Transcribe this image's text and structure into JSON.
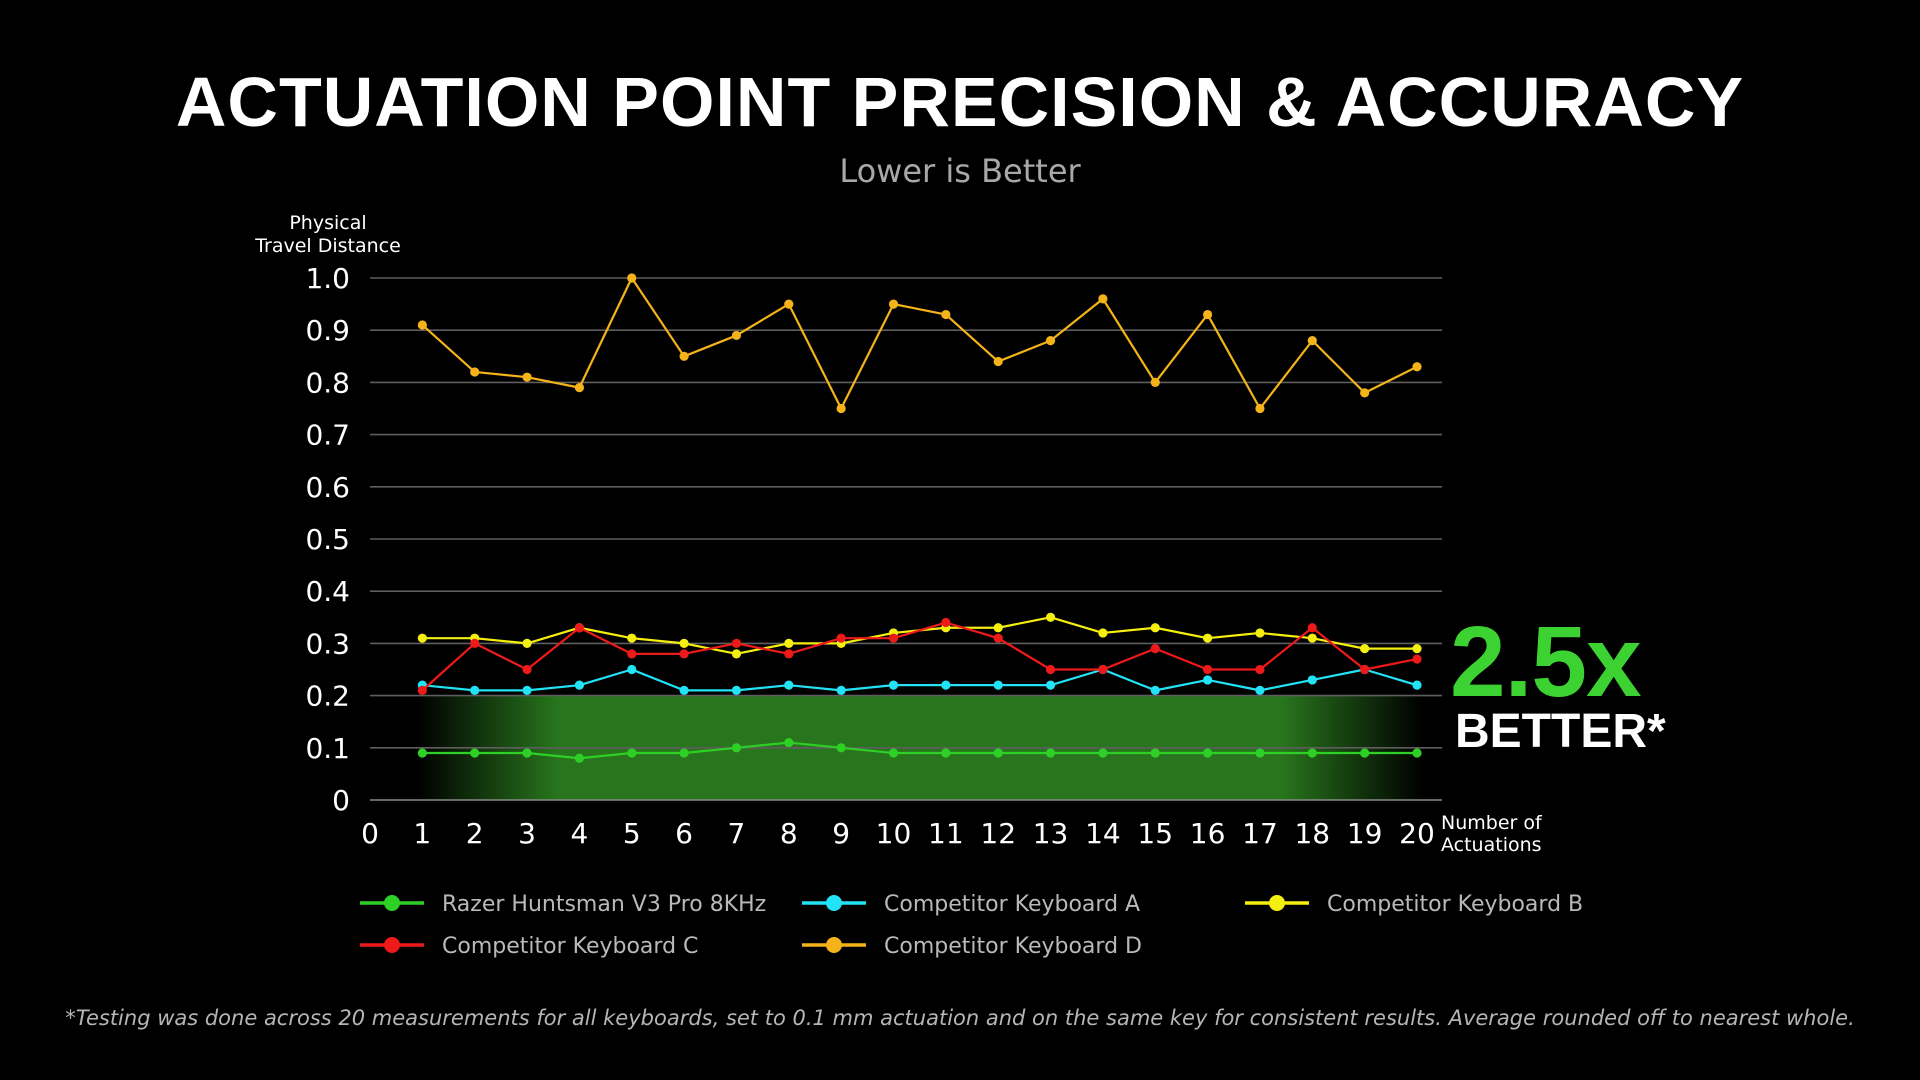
{
  "title": "ACTUATION POINT PRECISION & ACCURACY",
  "subtitle": "Lower is Better",
  "callout": {
    "multiplier": "2.5x",
    "label": "BETTER*",
    "color": "#3cd332"
  },
  "footnote": "*Testing was done across 20 measurements for all keyboards, set to 0.1 mm actuation and on the same key for consistent results. Average rounded off to nearest whole.",
  "chart_data": {
    "type": "line",
    "ylabel_lines": [
      "Physical",
      "Travel Distance"
    ],
    "xlabel_lines": [
      "Number of",
      "Actuations"
    ],
    "xlim": [
      0,
      20
    ],
    "ylim": [
      0,
      1.0
    ],
    "x_ticks": [
      "0",
      "1",
      "2",
      "3",
      "4",
      "5",
      "6",
      "7",
      "8",
      "9",
      "10",
      "11",
      "12",
      "13",
      "14",
      "15",
      "16",
      "17",
      "18",
      "19",
      "20"
    ],
    "y_ticks": [
      "0",
      "0.1",
      "0.2",
      "0.3",
      "0.4",
      "0.5",
      "0.6",
      "0.7",
      "0.8",
      "0.9",
      "1.0"
    ],
    "grid": true,
    "highlight_band": {
      "from": 0,
      "to": 0.2,
      "color": "#2f8a22"
    },
    "x": [
      1,
      2,
      3,
      4,
      5,
      6,
      7,
      8,
      9,
      10,
      11,
      12,
      13,
      14,
      15,
      16,
      17,
      18,
      19,
      20
    ],
    "series": [
      {
        "name": "Razer Huntsman V3 Pro 8KHz",
        "color": "#2fd026",
        "values": [
          0.09,
          0.09,
          0.09,
          0.08,
          0.09,
          0.09,
          0.1,
          0.11,
          0.1,
          0.09,
          0.09,
          0.09,
          0.09,
          0.09,
          0.09,
          0.09,
          0.09,
          0.09,
          0.09,
          0.09
        ]
      },
      {
        "name": "Competitor Keyboard A",
        "color": "#22e3f5",
        "values": [
          0.22,
          0.21,
          0.21,
          0.22,
          0.25,
          0.21,
          0.21,
          0.22,
          0.21,
          0.22,
          0.22,
          0.22,
          0.22,
          0.25,
          0.21,
          0.23,
          0.21,
          0.23,
          0.25,
          0.22
        ]
      },
      {
        "name": "Competitor Keyboard B",
        "color": "#f5ef10",
        "values": [
          0.31,
          0.31,
          0.3,
          0.33,
          0.31,
          0.3,
          0.28,
          0.3,
          0.3,
          0.32,
          0.33,
          0.33,
          0.35,
          0.32,
          0.33,
          0.31,
          0.32,
          0.31,
          0.29,
          0.29
        ]
      },
      {
        "name": "Competitor Keyboard C",
        "color": "#ee1a1a",
        "values": [
          0.21,
          0.3,
          0.25,
          0.33,
          0.28,
          0.28,
          0.3,
          0.28,
          0.31,
          0.31,
          0.34,
          0.31,
          0.25,
          0.25,
          0.29,
          0.25,
          0.25,
          0.33,
          0.25,
          0.27
        ]
      },
      {
        "name": "Competitor Keyboard D",
        "color": "#f5b31a",
        "values": [
          0.91,
          0.82,
          0.81,
          0.79,
          1.0,
          0.85,
          0.89,
          0.95,
          0.75,
          0.95,
          0.93,
          0.84,
          0.88,
          0.96,
          0.8,
          0.93,
          0.75,
          0.88,
          0.78,
          0.83
        ]
      }
    ],
    "legend_order": [
      0,
      1,
      2,
      3,
      4
    ],
    "legend_placement": "bottom"
  }
}
